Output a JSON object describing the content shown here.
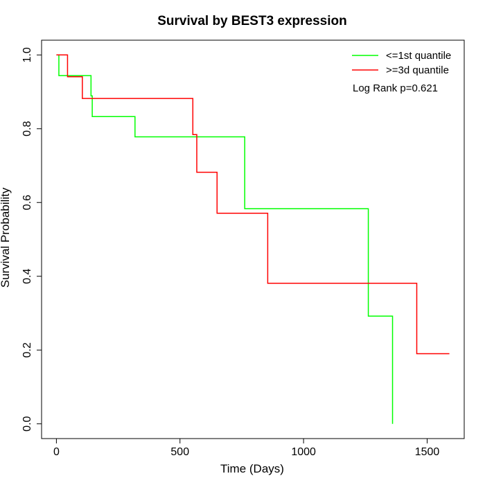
{
  "chart_data": {
    "type": "line",
    "title": "Survival by BEST3 expression",
    "xlabel": "Time (Days)",
    "ylabel": "Survival Probability",
    "xlim": [
      -60,
      1650
    ],
    "ylim": [
      -0.04,
      1.04
    ],
    "xticks": [
      0,
      500,
      1000,
      1500
    ],
    "yticks": [
      0.0,
      0.2,
      0.4,
      0.6,
      0.8,
      1.0
    ],
    "xtick_labels": [
      "0",
      "500",
      "1000",
      "1500"
    ],
    "ytick_labels": [
      "0.0",
      "0.2",
      "0.4",
      "0.6",
      "0.8",
      "1.0"
    ],
    "grid": false,
    "legend_position": "top-right",
    "annotation": "Log Rank p=0.621",
    "series": [
      {
        "name": "<=1st quantile",
        "color": "#00ff00",
        "step_points": [
          [
            0,
            1.0
          ],
          [
            10,
            0.944
          ],
          [
            140,
            0.889
          ],
          [
            145,
            0.833
          ],
          [
            318,
            0.778
          ],
          [
            762,
            0.583
          ],
          [
            1262,
            0.292
          ],
          [
            1360,
            0.0
          ]
        ],
        "end_x": 1360
      },
      {
        "name": ">=3d quantile",
        "color": "#ff0000",
        "step_points": [
          [
            0,
            1.0
          ],
          [
            45,
            0.941
          ],
          [
            105,
            0.882
          ],
          [
            552,
            0.784
          ],
          [
            568,
            0.682
          ],
          [
            650,
            0.571
          ],
          [
            855,
            0.381
          ],
          [
            1458,
            0.19
          ]
        ],
        "end_x": 1590
      }
    ]
  }
}
